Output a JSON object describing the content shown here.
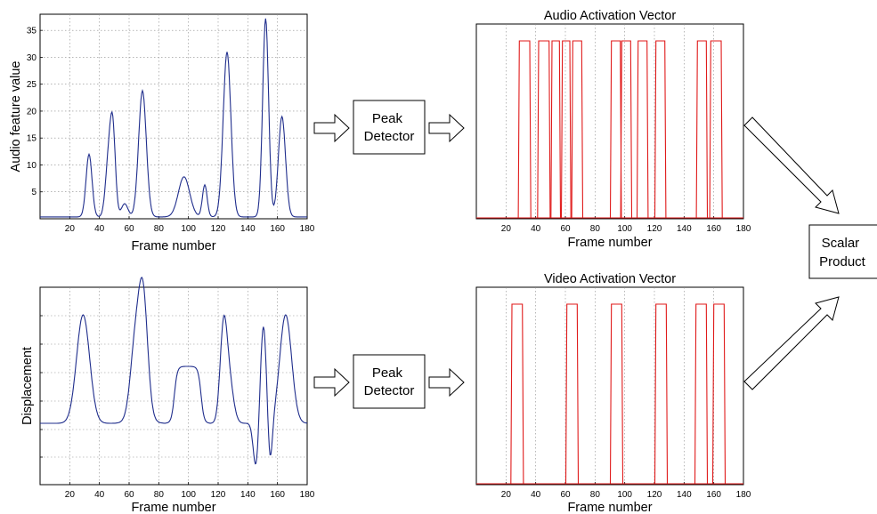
{
  "chart_data": [
    {
      "type": "line",
      "title": "",
      "xlabel": "Frame number",
      "ylabel": "Audio feature value",
      "xlim": [
        0,
        180
      ],
      "ylim": [
        0,
        38
      ],
      "xticks": [
        "20",
        "40",
        "60",
        "80",
        "100",
        "120",
        "140",
        "160",
        "180"
      ],
      "yticks": [
        "5",
        "10",
        "15",
        "20",
        "25",
        "30",
        "35"
      ],
      "grid": true,
      "color": "#1f2d8c",
      "peaks": [
        {
          "x": 33,
          "y": 12
        },
        {
          "x": 46,
          "y": 10
        },
        {
          "x": 49,
          "y": 16
        },
        {
          "x": 57,
          "y": 2.8
        },
        {
          "x": 69,
          "y": 23.8
        },
        {
          "x": 97,
          "y": 7.8
        },
        {
          "x": 111,
          "y": 6.3
        },
        {
          "x": 126,
          "y": 31
        },
        {
          "x": 152,
          "y": 37.2
        },
        {
          "x": 163,
          "y": 19
        }
      ]
    },
    {
      "type": "line",
      "title": "Audio Activation Vector",
      "xlabel": "Frame number",
      "ylabel": "",
      "xlim": [
        0,
        180
      ],
      "xticks": [
        "20",
        "40",
        "60",
        "80",
        "100",
        "120",
        "140",
        "160",
        "180"
      ],
      "grid": true,
      "color": "#e01a1a",
      "active_intervals": [
        [
          29,
          36
        ],
        [
          42,
          49
        ],
        [
          51,
          56
        ],
        [
          58,
          63
        ],
        [
          65,
          71
        ],
        [
          91,
          97
        ],
        [
          98,
          104
        ],
        [
          109,
          115
        ],
        [
          121,
          127
        ],
        [
          149,
          155
        ],
        [
          158,
          165
        ]
      ]
    },
    {
      "type": "line",
      "title": "",
      "xlabel": "Frame number",
      "ylabel": "Displacement",
      "xlim": [
        0,
        180
      ],
      "xticks": [
        "20",
        "40",
        "60",
        "80",
        "100",
        "120",
        "140",
        "160",
        "180"
      ],
      "grid": true,
      "color": "#1f2d8c"
    },
    {
      "type": "line",
      "title": "Video Activation Vector",
      "xlabel": "Frame number",
      "ylabel": "",
      "xlim": [
        0,
        180
      ],
      "xticks": [
        "20",
        "40",
        "60",
        "80",
        "100",
        "120",
        "140",
        "160",
        "180"
      ],
      "grid": true,
      "color": "#e01a1a",
      "active_intervals": [
        [
          24,
          31
        ],
        [
          61,
          68
        ],
        [
          91,
          98
        ],
        [
          121,
          128
        ],
        [
          148,
          155
        ],
        [
          160,
          167
        ]
      ]
    }
  ],
  "diagram": {
    "peak_detector_top": "Peak\nDetector",
    "peak_detector_bottom": "Peak\nDetector",
    "scalar_product": "Scalar\nProduct"
  }
}
